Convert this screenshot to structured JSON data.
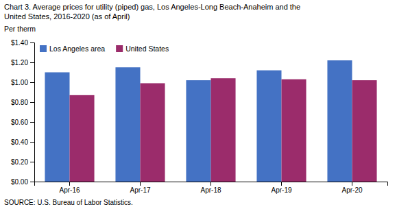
{
  "chart_data": {
    "type": "bar",
    "title": [
      "Chart 3. Average prices for utility (piped) gas, Los Angeles-Long Beach-Anaheim and the",
      "United States, 2016-2020  (as of April)"
    ],
    "ylabel": "Per therm",
    "annotations": [
      "SOURCE: U.S. Bureau of Labor Statistics."
    ],
    "categories": [
      "Apr-16",
      "Apr-17",
      "Apr-18",
      "Apr-19",
      "Apr-20"
    ],
    "series": [
      {
        "name": "Los Angeles area",
        "color": "#4472C4",
        "values": [
          1.1,
          1.15,
          1.02,
          1.12,
          1.22
        ]
      },
      {
        "name": "United States",
        "color": "#9B2C6B",
        "values": [
          0.87,
          0.99,
          1.04,
          1.03,
          1.02
        ]
      }
    ],
    "ylim": [
      0,
      1.4
    ],
    "yticks": [
      {
        "value": 0,
        "label": "$0.00"
      },
      {
        "value": 0.2,
        "label": "$0.20"
      },
      {
        "value": 0.4,
        "label": "$0.40"
      },
      {
        "value": 0.6,
        "label": "$0.60"
      },
      {
        "value": 0.8,
        "label": "$0.80"
      },
      {
        "value": 1.0,
        "label": "$1.00"
      },
      {
        "value": 1.2,
        "label": "$1.20"
      },
      {
        "value": 1.4,
        "label": "$1.40"
      }
    ],
    "grid": false,
    "legend": "upper left"
  }
}
